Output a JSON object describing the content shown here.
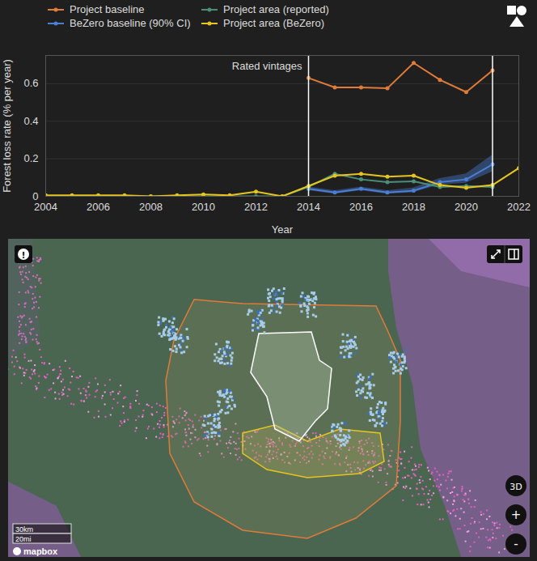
{
  "chart_data": {
    "type": "line",
    "x_label": "Year",
    "y_label": "Forest loss rate (% per year)",
    "x": [
      2004,
      2005,
      2006,
      2007,
      2008,
      2009,
      2010,
      2011,
      2012,
      2013,
      2014,
      2015,
      2016,
      2017,
      2018,
      2019,
      2020,
      2021,
      2022
    ],
    "xlim": [
      2004,
      2022
    ],
    "xticks": [
      2004,
      2006,
      2008,
      2010,
      2012,
      2014,
      2016,
      2018,
      2020,
      2022
    ],
    "ylim": [
      0,
      0.75
    ],
    "yticks": [
      0,
      0.2,
      0.4,
      0.6
    ],
    "grid": true,
    "annotations": [
      {
        "text": "Rated vintages",
        "x_start": 2014,
        "x_end": 2021
      }
    ],
    "series": [
      {
        "name": "Project baseline",
        "color": "#e07b39",
        "marker": "circle",
        "values": [
          null,
          null,
          null,
          null,
          null,
          null,
          null,
          null,
          null,
          null,
          0.63,
          0.58,
          0.58,
          0.575,
          0.71,
          0.62,
          0.555,
          0.67,
          null
        ]
      },
      {
        "name": "BeZero baseline (90% CI)",
        "color": "#4a7fd4",
        "marker": "circle",
        "values": [
          null,
          null,
          null,
          null,
          null,
          null,
          null,
          null,
          null,
          null,
          0.04,
          0.02,
          0.04,
          0.02,
          0.03,
          0.075,
          0.09,
          0.17,
          null
        ],
        "lower": [
          null,
          null,
          null,
          null,
          null,
          null,
          null,
          null,
          null,
          null,
          0.03,
          0.012,
          0.03,
          0.012,
          0.02,
          0.06,
          0.07,
          0.13,
          null
        ],
        "upper": [
          null,
          null,
          null,
          null,
          null,
          null,
          null,
          null,
          null,
          null,
          0.05,
          0.03,
          0.05,
          0.03,
          0.045,
          0.095,
          0.12,
          0.22,
          null
        ]
      },
      {
        "name": "Project area (reported)",
        "color": "#4a8f7a",
        "marker": "circle",
        "values": [
          0,
          0,
          0,
          0,
          0,
          0,
          0,
          0,
          0,
          0,
          0.05,
          0.12,
          0.09,
          0.075,
          0.08,
          0.05,
          0.055,
          0.05,
          null
        ]
      },
      {
        "name": "Project area (BeZero)",
        "color": "#e5c51e",
        "marker": "circle",
        "values": [
          0.005,
          0.005,
          0.005,
          0.005,
          0,
          0.005,
          0.01,
          0.005,
          0.025,
          0,
          0.055,
          0.11,
          0.12,
          0.105,
          0.11,
          0.06,
          0.045,
          0.06,
          0.15
        ]
      }
    ]
  },
  "map": {
    "info_icon": "!",
    "controls": [
      "3D",
      "+",
      "-"
    ],
    "scale_labels": [
      "30km",
      "20mi"
    ],
    "attribution": "mapbox"
  }
}
